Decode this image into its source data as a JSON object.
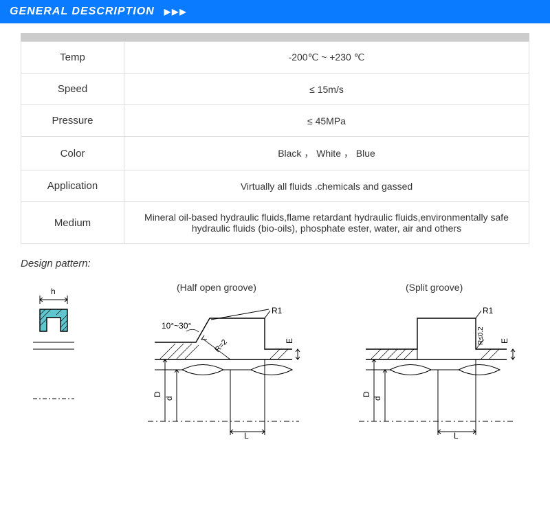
{
  "header": {
    "title": "GENERAL DESCRIPTION"
  },
  "specs": {
    "rows": [
      {
        "label": "Temp",
        "value": "-200℃ ~ +230 ℃"
      },
      {
        "label": "Speed",
        "value": "≤ 15m/s"
      },
      {
        "label": "Pressure",
        "value": "≤ 45MPa"
      },
      {
        "label": "Color",
        "value": "Black ， White ， Blue"
      },
      {
        "label": "Application",
        "value": "Virtually all fluids .chemicals and gassed"
      },
      {
        "label": "Medium",
        "value": "Mineral oil-based hydraulic fluids,flame retardant hydraulic fluids,environmentally safe hydraulic fluids (bio-oils), phosphate ester, water, air and others"
      }
    ]
  },
  "design": {
    "section_label": "Design pattern:",
    "left_title": "(Half open groove)",
    "right_title": "(Split groove)",
    "labels": {
      "h": "h",
      "angle": "10°~30°",
      "R1": "R1",
      "R2": "R=2",
      "Rleq": "R≤0.2",
      "D": "D",
      "d": "d",
      "L": "L",
      "E": "E"
    },
    "colors": {
      "seal_fill": "#5fc6d0",
      "seal_stroke": "#000",
      "line": "#000",
      "hatch": "#000"
    }
  }
}
